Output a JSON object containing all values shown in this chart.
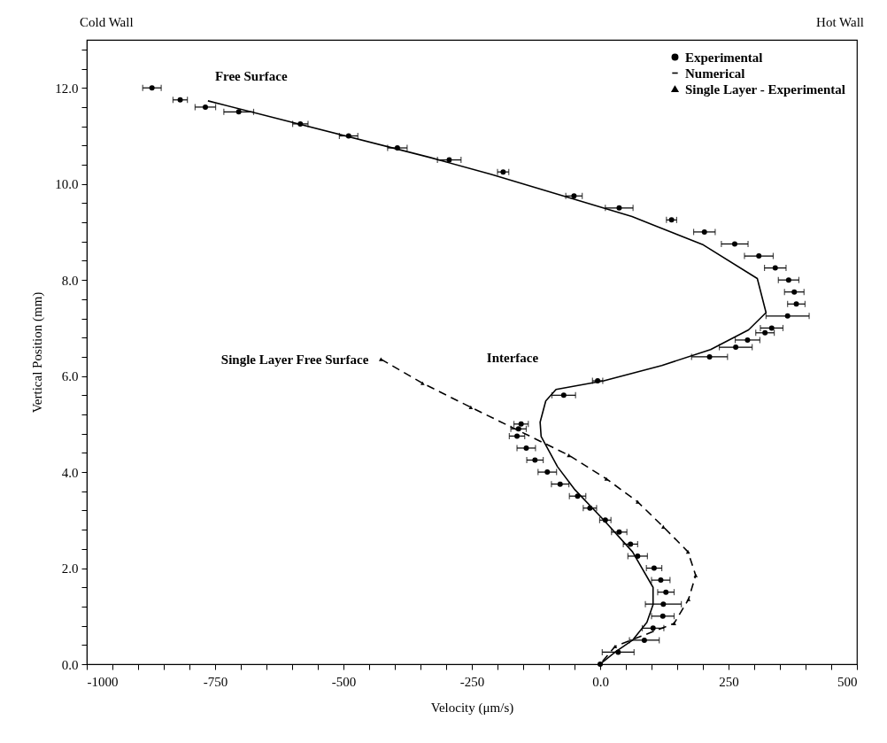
{
  "chart_data": {
    "type": "scatter",
    "xlabel": "Velocity (μm/s)",
    "ylabel": "Vertical Position (mm)",
    "xlim": [
      -1000,
      500
    ],
    "ylim": [
      0,
      13
    ],
    "xticks": [
      -1000,
      {
        "value": -950,
        "label": null
      },
      {
        "value": -900,
        "label": null
      },
      {
        "value": -850,
        "label": null
      },
      {
        "value": -800,
        "label": null
      },
      -750,
      {
        "value": -700,
        "label": null
      },
      {
        "value": -650,
        "label": null
      },
      {
        "value": -600,
        "label": null
      },
      {
        "value": -550,
        "label": null
      },
      -500,
      {
        "value": -450,
        "label": null
      },
      {
        "value": -400,
        "label": null
      },
      {
        "value": -350,
        "label": null
      },
      {
        "value": -300,
        "label": null
      },
      -250,
      {
        "value": -200,
        "label": null
      },
      {
        "value": -150,
        "label": null
      },
      {
        "value": -100,
        "label": null
      },
      {
        "value": -50,
        "label": null
      },
      {
        "value": 0,
        "label": "0.0"
      },
      {
        "value": 50,
        "label": null
      },
      {
        "value": 100,
        "label": null
      },
      {
        "value": 150,
        "label": null
      },
      {
        "value": 200,
        "label": null
      },
      250,
      {
        "value": 300,
        "label": null
      },
      {
        "value": 350,
        "label": null
      },
      {
        "value": 400,
        "label": null
      },
      {
        "value": 450,
        "label": null
      },
      500
    ],
    "yticks": [
      {
        "value": 0,
        "label": "0.0"
      },
      {
        "value": 0.4,
        "label": null
      },
      {
        "value": 0.8,
        "label": null
      },
      {
        "value": 1.2,
        "label": null
      },
      {
        "value": 1.6,
        "label": null
      },
      {
        "value": 2,
        "label": "2.0"
      },
      {
        "value": 2.4,
        "label": null
      },
      {
        "value": 2.8,
        "label": null
      },
      {
        "value": 3.2,
        "label": null
      },
      {
        "value": 3.6,
        "label": null
      },
      {
        "value": 4,
        "label": "4.0"
      },
      {
        "value": 4.4,
        "label": null
      },
      {
        "value": 4.8,
        "label": null
      },
      {
        "value": 5.2,
        "label": null
      },
      {
        "value": 5.6,
        "label": null
      },
      {
        "value": 6,
        "label": "6.0"
      },
      {
        "value": 6.4,
        "label": null
      },
      {
        "value": 6.8,
        "label": null
      },
      {
        "value": 7.2,
        "label": null
      },
      {
        "value": 7.6,
        "label": null
      },
      {
        "value": 8,
        "label": "8.0"
      },
      {
        "value": 8.4,
        "label": null
      },
      {
        "value": 8.8,
        "label": null
      },
      {
        "value": 9.2,
        "label": null
      },
      {
        "value": 9.6,
        "label": null
      },
      {
        "value": 10,
        "label": "10.0"
      },
      {
        "value": 10.4,
        "label": null
      },
      {
        "value": 10.8,
        "label": null
      },
      {
        "value": 11.2,
        "label": null
      },
      {
        "value": 11.6,
        "label": null
      },
      {
        "value": 12,
        "label": "12.0"
      },
      {
        "value": 12.4,
        "label": null
      },
      {
        "value": 12.8,
        "label": null
      }
    ],
    "legend": "top right",
    "annotations": [
      "Cold Wall",
      "Hot Wall",
      {
        "text": "Free Surface",
        "x": -764,
        "y": 11.73
      },
      {
        "text": "Single Layer Free Surface",
        "x": -427,
        "y": 6.35
      },
      {
        "text": "Interface",
        "x": -86,
        "y": 5.72
      }
    ],
    "series": [
      {
        "name": "Experimental",
        "marker": "circle",
        "color": "#000000",
        "x": [
          -873,
          -818,
          -769,
          -704,
          -584,
          -490,
          -395,
          -294,
          -189,
          -51,
          37,
          139,
          203,
          262,
          309,
          341,
          367,
          378,
          382,
          365,
          334,
          321,
          287,
          264,
          213,
          -5,
          -71,
          -154,
          -159,
          -162,
          -144,
          -127,
          -103,
          -78,
          -44,
          -20,
          10,
          37,
          59,
          73,
          105,
          118,
          128,
          123,
          122,
          103,
          86,
          35,
          0
        ],
        "values": [
          12,
          11.75,
          11.6,
          11.5,
          11.25,
          11,
          10.75,
          10.5,
          10.25,
          9.75,
          9.5,
          9.25,
          9,
          8.75,
          8.5,
          8.25,
          8,
          7.75,
          7.5,
          7.25,
          7,
          6.9,
          6.75,
          6.6,
          6.4,
          5.9,
          5.6,
          5,
          4.9,
          4.75,
          4.5,
          4.25,
          4,
          3.75,
          3.5,
          3.25,
          3,
          2.75,
          2.5,
          2.25,
          2,
          1.75,
          1.5,
          1.25,
          1,
          0.75,
          0.5,
          0.25,
          0
        ],
        "xerrors": [
          18,
          14,
          20,
          29,
          15,
          18,
          19,
          23,
          11,
          16,
          27,
          10,
          21,
          26,
          28,
          21,
          20,
          19,
          17,
          42,
          22,
          18,
          24,
          32,
          35,
          10,
          23,
          14,
          15,
          15,
          18,
          16,
          18,
          17,
          16,
          13,
          11,
          15,
          14,
          19,
          15,
          18,
          16,
          35,
          22,
          21,
          29,
          31,
          null
        ]
      },
      {
        "name": "Numerical",
        "type": "line",
        "marker": "none",
        "line_style": "solid",
        "color": "#000000",
        "x": [
          -764,
          -331,
          -213,
          62,
          201,
          306,
          323,
          289,
          215,
          120,
          7,
          -86,
          -106,
          -117,
          -115,
          -83,
          -49,
          7,
          63,
          103,
          103,
          91,
          63,
          29,
          0
        ],
        "values": [
          11.73,
          10.55,
          10.2,
          9.32,
          8.73,
          8.03,
          7.32,
          6.96,
          6.55,
          6.22,
          5.9,
          5.72,
          5.48,
          5.04,
          4.74,
          4.11,
          3.63,
          3,
          2.34,
          1.6,
          1.24,
          0.87,
          0.5,
          0.25,
          0
        ]
      },
      {
        "name": "Single Layer - Experimental",
        "type": "line",
        "marker": "triangle",
        "line_style": "dashed",
        "color": "#000000",
        "x": [
          -427,
          -346,
          -252,
          -61,
          12,
          73,
          123,
          171,
          186,
          172,
          144,
          29,
          0
        ],
        "values": [
          6.35,
          5.85,
          5.35,
          4.35,
          3.86,
          3.38,
          2.86,
          2.34,
          1.85,
          1.35,
          0.85,
          0.37,
          0
        ]
      }
    ]
  }
}
